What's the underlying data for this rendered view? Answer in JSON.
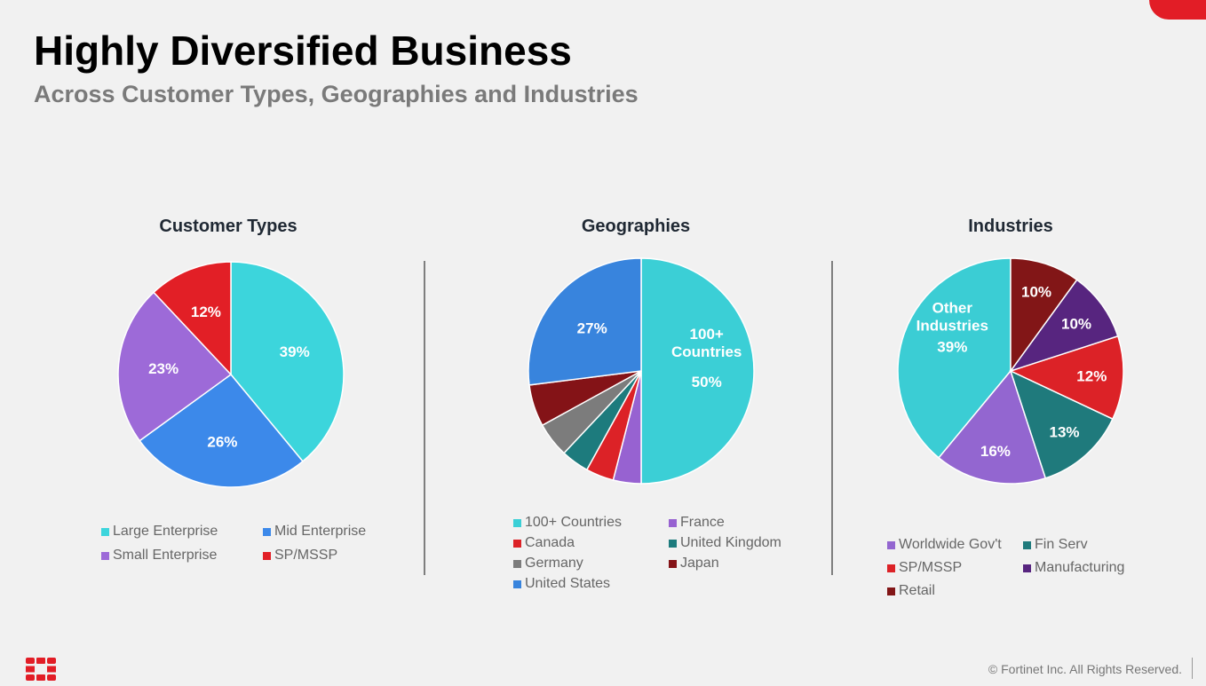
{
  "header": {
    "title": "Highly Diversified Business",
    "subtitle": "Across Customer Types, Geographies and Industries"
  },
  "footer": {
    "copyright": "© Fortinet Inc. All Rights Reserved."
  },
  "colors": {
    "brand_red": "#e21d26"
  },
  "icons": {
    "logo": "fortinet-logo-icon"
  },
  "chart_data": [
    {
      "type": "pie",
      "title": "Customer Types",
      "slices": [
        {
          "name": "Large Enterprise",
          "value": 39,
          "label": "39%",
          "color": "#3cd5dc"
        },
        {
          "name": "Mid Enterprise",
          "value": 26,
          "label": "26%",
          "color": "#3c89ea"
        },
        {
          "name": "Small Enterprise",
          "value": 23,
          "label": "23%",
          "color": "#9d6ad8"
        },
        {
          "name": "SP/MSSP",
          "value": 12,
          "label": "12%",
          "color": "#e21f26"
        }
      ],
      "legend": [
        "Large Enterprise",
        "Mid Enterprise",
        "Small Enterprise",
        "SP/MSSP"
      ]
    },
    {
      "type": "pie",
      "title": "Geographies",
      "slices": [
        {
          "name": "100+ Countries",
          "value": 50,
          "label": "50%",
          "inner_label": [
            "100+",
            "Countries"
          ],
          "color": "#3bcfd6"
        },
        {
          "name": "France",
          "value": 4,
          "label": "",
          "color": "#9762d1"
        },
        {
          "name": "Canada",
          "value": 4,
          "label": "",
          "color": "#dc2227"
        },
        {
          "name": "United Kingdom",
          "value": 4,
          "label": "",
          "color": "#1d7b7d"
        },
        {
          "name": "Germany",
          "value": 5,
          "label": "",
          "color": "#7c7c7c"
        },
        {
          "name": "Japan",
          "value": 6,
          "label": "",
          "color": "#841317"
        },
        {
          "name": "United States",
          "value": 27,
          "label": "27%",
          "color": "#3884dd"
        }
      ],
      "legend": [
        "100+ Countries",
        "France",
        "Canada",
        "United Kingdom",
        "Germany",
        "Japan",
        "United States"
      ]
    },
    {
      "type": "pie",
      "title": "Industries",
      "slices": [
        {
          "name": "Other Industries",
          "value": 39,
          "label": "39%",
          "inner_label": [
            "Other",
            "Industries"
          ],
          "color": "#3bcdd4"
        },
        {
          "name": "Worldwide Gov't",
          "value": 16,
          "label": "16%",
          "color": "#9366d0"
        },
        {
          "name": "Fin Serv",
          "value": 13,
          "label": "13%",
          "color": "#1f7a7c"
        },
        {
          "name": "SP/MSSP",
          "value": 12,
          "label": "12%",
          "color": "#dc2227"
        },
        {
          "name": "Manufacturing",
          "value": 10,
          "label": "10%",
          "color": "#57257f"
        },
        {
          "name": "Retail",
          "value": 10,
          "label": "10%",
          "color": "#821617"
        }
      ],
      "legend": [
        "Worldwide Gov't",
        "Fin Serv",
        "SP/MSSP",
        "Manufacturing",
        "Retail"
      ]
    }
  ]
}
